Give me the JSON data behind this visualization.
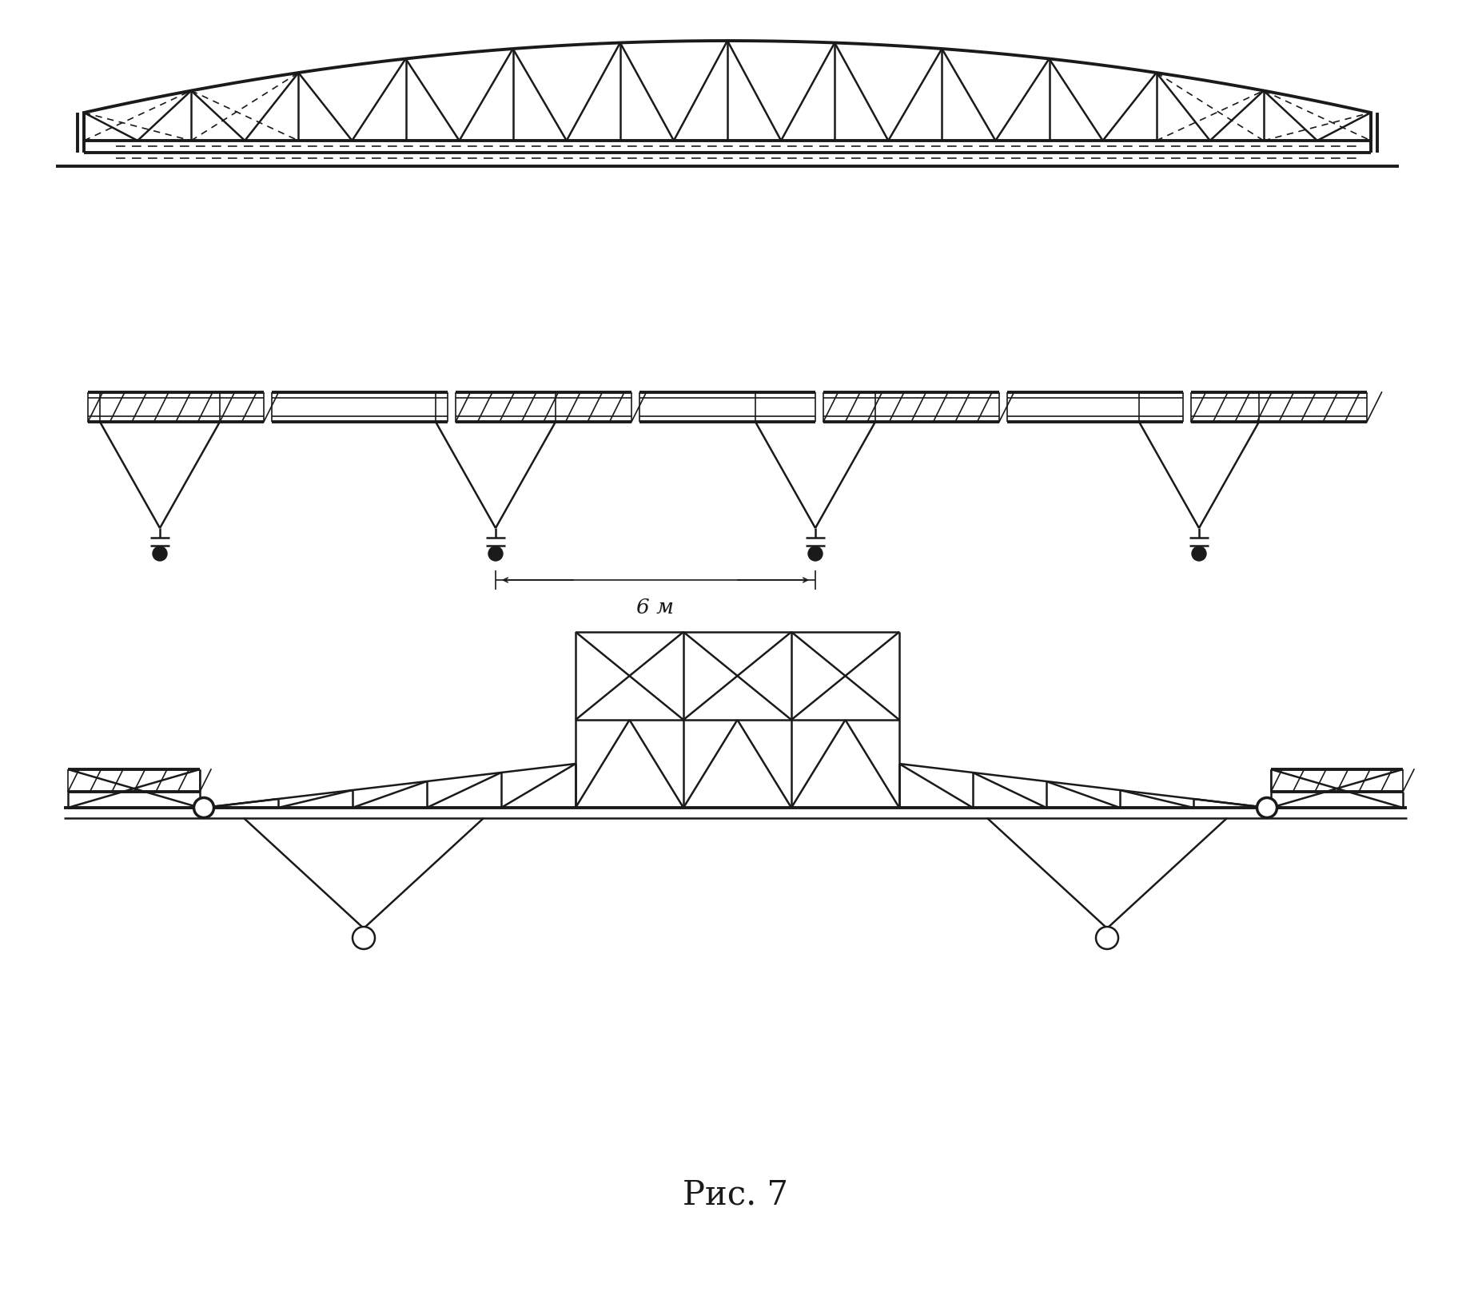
{
  "bg_color": "#ffffff",
  "line_color": "#1a1a1a",
  "title": "Рис. 7",
  "title_fontsize": 30,
  "fig_width": 18.44,
  "fig_height": 16.46
}
